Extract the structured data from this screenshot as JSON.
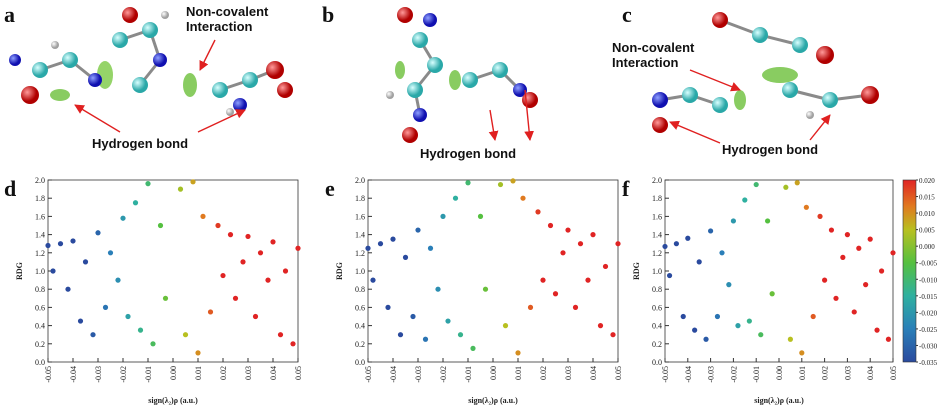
{
  "panel_labels": [
    "a",
    "b",
    "c",
    "d",
    "e",
    "f"
  ],
  "annotations": [
    "Non-covalent Interaction",
    "Hydrogen bond",
    "Hydrogen bond",
    "Non-covalent Interaction",
    "Hydrogen bond"
  ],
  "colorscale": [
    [
      -0.035,
      "#2a4a9e"
    ],
    [
      -0.025,
      "#2a7fb8"
    ],
    [
      -0.015,
      "#2fb0a0"
    ],
    [
      -0.005,
      "#55c040"
    ],
    [
      0.005,
      "#b8c020"
    ],
    [
      0.012,
      "#e07a20"
    ],
    [
      0.02,
      "#e02424"
    ]
  ],
  "chart_data": [
    {
      "type": "scatter",
      "x_label": "sign(λ₂)ρ (a.u.)",
      "y_label": "RDG",
      "x": [
        -0.05,
        -0.048,
        -0.045,
        -0.042,
        -0.04,
        -0.037,
        -0.035,
        -0.032,
        -0.03,
        -0.027,
        -0.025,
        -0.022,
        -0.02,
        -0.018,
        -0.015,
        -0.013,
        -0.01,
        -0.008,
        -0.005,
        -0.003,
        0.003,
        0.005,
        0.008,
        0.01,
        0.012,
        0.015,
        0.018,
        0.02,
        0.023,
        0.025,
        0.028,
        0.03,
        0.033,
        0.035,
        0.038,
        0.04,
        0.043,
        0.045,
        0.048,
        0.05
      ],
      "y": [
        1.28,
        1.0,
        1.3,
        0.8,
        1.33,
        0.45,
        1.1,
        0.3,
        1.42,
        0.6,
        1.2,
        0.9,
        1.58,
        0.5,
        1.75,
        0.35,
        1.96,
        0.2,
        1.5,
        0.7,
        1.9,
        0.3,
        1.98,
        0.1,
        1.6,
        0.55,
        1.5,
        0.95,
        1.4,
        0.7,
        1.1,
        1.38,
        0.5,
        1.2,
        0.9,
        1.32,
        0.3,
        1.0,
        0.2,
        1.25
      ],
      "xlim": [
        -0.05,
        0.05
      ],
      "ylim": [
        0,
        2
      ],
      "xticks": [
        -0.05,
        -0.04,
        -0.03,
        -0.02,
        -0.01,
        {
          "value": 0,
          "label": "0.00"
        },
        0.01,
        0.02,
        0.03,
        0.04,
        0.05
      ],
      "yticks": [
        {
          "value": 0,
          "label": "0.0"
        },
        0.2,
        0.4,
        0.6,
        0.8,
        {
          "value": 1,
          "label": "1.0"
        },
        1.2,
        1.4,
        1.6,
        1.8,
        {
          "value": 2,
          "label": "2.0"
        }
      ]
    },
    {
      "type": "scatter",
      "x_label": "sign(λ₂)ρ (a.u.)",
      "y_label": "RDG",
      "x": [
        -0.05,
        -0.048,
        -0.045,
        -0.042,
        -0.04,
        -0.037,
        -0.035,
        -0.032,
        -0.03,
        -0.027,
        -0.025,
        -0.022,
        -0.02,
        -0.018,
        -0.015,
        -0.013,
        -0.01,
        -0.008,
        -0.005,
        -0.003,
        0.003,
        0.005,
        0.008,
        0.01,
        0.012,
        0.015,
        0.018,
        0.02,
        0.023,
        0.025,
        0.028,
        0.03,
        0.033,
        0.035,
        0.038,
        0.04,
        0.043,
        0.045,
        0.048,
        0.05
      ],
      "y": [
        1.25,
        0.9,
        1.3,
        0.6,
        1.35,
        0.3,
        1.15,
        0.5,
        1.45,
        0.25,
        1.25,
        0.8,
        1.6,
        0.45,
        1.8,
        0.3,
        1.97,
        0.15,
        1.6,
        0.8,
        1.95,
        0.4,
        1.99,
        0.1,
        1.8,
        0.6,
        1.65,
        0.9,
        1.5,
        0.75,
        1.2,
        1.45,
        0.6,
        1.3,
        0.9,
        1.4,
        0.4,
        1.05,
        0.3,
        1.3
      ],
      "xlim": [
        -0.05,
        0.05
      ],
      "ylim": [
        0,
        2
      ],
      "xticks": [
        -0.05,
        -0.04,
        -0.03,
        -0.02,
        -0.01,
        {
          "value": 0,
          "label": "0.00"
        },
        0.01,
        0.02,
        0.03,
        0.04,
        0.05
      ],
      "yticks": [
        {
          "value": 0,
          "label": "0.0"
        },
        0.2,
        0.4,
        0.6,
        0.8,
        {
          "value": 1,
          "label": "1.0"
        },
        1.2,
        1.4,
        1.6,
        1.8,
        {
          "value": 2,
          "label": "2.0"
        }
      ]
    },
    {
      "type": "scatter",
      "x_label": "sign(λ₂)ρ (a.u.)",
      "y_label": "RDG",
      "x": [
        -0.05,
        -0.048,
        -0.045,
        -0.042,
        -0.04,
        -0.037,
        -0.035,
        -0.032,
        -0.03,
        -0.027,
        -0.025,
        -0.022,
        -0.02,
        -0.018,
        -0.015,
        -0.013,
        -0.01,
        -0.008,
        -0.005,
        -0.003,
        0.003,
        0.005,
        0.008,
        0.01,
        0.012,
        0.015,
        0.018,
        0.02,
        0.023,
        0.025,
        0.028,
        0.03,
        0.033,
        0.035,
        0.038,
        0.04,
        0.043,
        0.045,
        0.048,
        0.05
      ],
      "y": [
        1.27,
        0.95,
        1.3,
        0.5,
        1.36,
        0.35,
        1.1,
        0.25,
        1.44,
        0.5,
        1.2,
        0.85,
        1.55,
        0.4,
        1.78,
        0.45,
        1.95,
        0.3,
        1.55,
        0.75,
        1.92,
        0.25,
        1.97,
        0.1,
        1.7,
        0.5,
        1.6,
        0.9,
        1.45,
        0.7,
        1.15,
        1.4,
        0.55,
        1.25,
        0.85,
        1.35,
        0.35,
        1.0,
        0.25,
        1.2
      ],
      "xlim": [
        -0.05,
        0.05
      ],
      "ylim": [
        0,
        2
      ],
      "xticks": [
        -0.05,
        -0.04,
        -0.03,
        -0.02,
        -0.01,
        {
          "value": 0,
          "label": "0.00"
        },
        0.01,
        0.02,
        0.03,
        0.04,
        0.05
      ],
      "yticks": [
        {
          "value": 0,
          "label": "0.0"
        },
        0.2,
        0.4,
        0.6,
        0.8,
        {
          "value": 1,
          "label": "1.0"
        },
        1.2,
        1.4,
        1.6,
        1.8,
        {
          "value": 2,
          "label": "2.0"
        }
      ],
      "colorbar": {
        "clim": [
          -0.035,
          0.02
        ],
        "ticks": [
          {
            "value": 0.02,
            "label": "0.020"
          },
          0.015,
          {
            "value": 0.01,
            "label": "0.010"
          },
          0.005,
          {
            "value": 0,
            "label": "0.000"
          },
          -0.005,
          {
            "value": -0.01,
            "label": "-0.010"
          },
          -0.015,
          {
            "value": -0.02,
            "label": "-0.020"
          },
          -0.025,
          {
            "value": -0.03,
            "label": "-0.030"
          },
          -0.035
        ]
      }
    }
  ]
}
